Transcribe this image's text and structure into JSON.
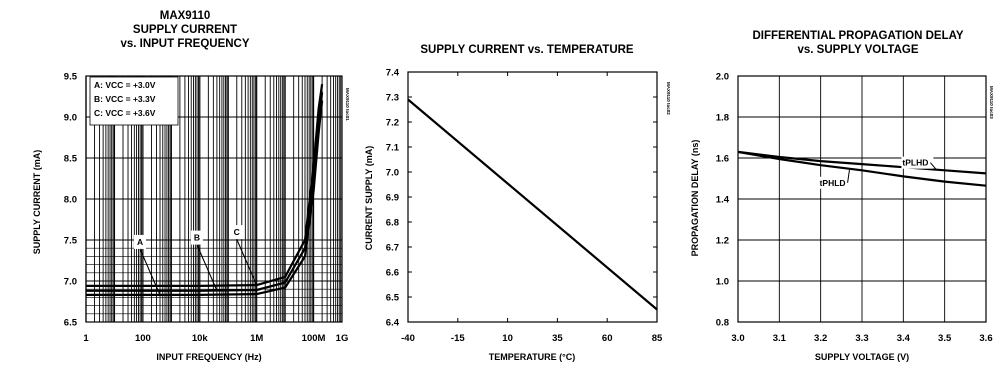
{
  "chart_data": [
    {
      "type": "line",
      "title_lines": [
        "MAX9110",
        "SUPPLY CURRENT",
        "vs. INPUT FREQUENCY"
      ],
      "xlabel": "INPUT FREQUENCY (Hz)",
      "ylabel": "SUPPLY CURRENT (mA)",
      "x_scale": "log",
      "xlim": [
        1,
        1000000000
      ],
      "ylim": [
        6.5,
        9.5
      ],
      "x_tick_values": [
        1,
        100,
        10000,
        1000000,
        100000000,
        1000000000
      ],
      "x_tick_labels": [
        "1",
        "100",
        "10k",
        "1M",
        "100M",
        "1G"
      ],
      "y_tick_values": [
        6.5,
        7.0,
        7.5,
        8.0,
        8.5,
        9.0,
        9.5
      ],
      "y_tick_labels": [
        "6.5",
        "7.0",
        "7.5",
        "8.0",
        "8.5",
        "9.0",
        "9.5"
      ],
      "grid": true,
      "code": "MAX9110 toc01",
      "legend_lines": [
        "A: VCC = +3.0V",
        "B: VCC = +3.3V",
        "C: VCC = +3.6V"
      ],
      "series": [
        {
          "name": "A",
          "x": [
            1,
            100,
            10000,
            1000000,
            10000000,
            50000000,
            100000000,
            150000000,
            200000000
          ],
          "y": [
            6.83,
            6.83,
            6.83,
            6.84,
            6.92,
            7.3,
            8.1,
            8.8,
            9.2
          ]
        },
        {
          "name": "B",
          "x": [
            1,
            100,
            10000,
            1000000,
            10000000,
            50000000,
            100000000,
            150000000,
            200000000
          ],
          "y": [
            6.88,
            6.88,
            6.88,
            6.89,
            6.98,
            7.4,
            8.25,
            8.95,
            9.3
          ]
        },
        {
          "name": "C",
          "x": [
            1,
            100,
            10000,
            1000000,
            10000000,
            50000000,
            100000000,
            150000000,
            200000000
          ],
          "y": [
            6.94,
            6.94,
            6.94,
            6.95,
            7.05,
            7.5,
            8.4,
            9.1,
            9.4
          ]
        }
      ],
      "curve_labels": [
        {
          "text": "A",
          "series": "A",
          "x": 400
        },
        {
          "text": "B",
          "series": "B",
          "x": 40000
        },
        {
          "text": "C",
          "series": "C",
          "x": 1000000
        }
      ]
    },
    {
      "type": "line",
      "title_lines": [
        "SUPPLY CURRENT vs. TEMPERATURE"
      ],
      "xlabel": "TEMPERATURE (°C)",
      "ylabel": "CURRENT SUPPLY (mA)",
      "xlim": [
        -40,
        85
      ],
      "ylim": [
        6.4,
        7.4
      ],
      "x_tick_values": [
        -40,
        -15,
        10,
        35,
        60,
        85
      ],
      "x_tick_labels": [
        "-40",
        "-15",
        "10",
        "35",
        "60",
        "85"
      ],
      "y_tick_values": [
        6.4,
        6.5,
        6.6,
        6.7,
        6.8,
        6.9,
        7.0,
        7.1,
        7.2,
        7.3,
        7.4
      ],
      "y_tick_labels": [
        "6.4",
        "6.5",
        "6.6",
        "6.7",
        "6.8",
        "6.9",
        "7.0",
        "7.1",
        "7.2",
        "7.3",
        "7.4"
      ],
      "grid": false,
      "code": "MAX9110 toc02",
      "series": [
        {
          "x": [
            -40,
            85
          ],
          "y": [
            7.29,
            6.45
          ]
        }
      ]
    },
    {
      "type": "line",
      "title_lines": [
        "DIFFERENTIAL PROPAGATION DELAY",
        "vs. SUPPLY VOLTAGE"
      ],
      "xlabel": "SUPPLY VOLTAGE (V)",
      "ylabel": "PROPAGATION DELAY (ns)",
      "xlim": [
        3.0,
        3.6
      ],
      "ylim": [
        0.8,
        2.0
      ],
      "x_tick_values": [
        3.0,
        3.1,
        3.2,
        3.3,
        3.4,
        3.5,
        3.6
      ],
      "x_tick_labels": [
        "3.0",
        "3.1",
        "3.2",
        "3.3",
        "3.4",
        "3.5",
        "3.6"
      ],
      "y_tick_values": [
        0.8,
        1.0,
        1.2,
        1.4,
        1.6,
        1.8,
        2.0
      ],
      "y_tick_labels": [
        "0.8",
        "1.0",
        "1.2",
        "1.4",
        "1.6",
        "1.8",
        "2.0"
      ],
      "grid": true,
      "code": "MAX9110 toc03",
      "series": [
        {
          "name": "tPLHD",
          "x": [
            3.0,
            3.1,
            3.2,
            3.3,
            3.4,
            3.5,
            3.6
          ],
          "y": [
            1.63,
            1.605,
            1.585,
            1.57,
            1.555,
            1.54,
            1.525
          ]
        },
        {
          "name": "tPHLD",
          "x": [
            3.0,
            3.1,
            3.2,
            3.3,
            3.4,
            3.5,
            3.6
          ],
          "y": [
            1.63,
            1.595,
            1.565,
            1.54,
            1.51,
            1.485,
            1.465
          ]
        }
      ],
      "curve_labels": [
        {
          "text": "tPLHD",
          "series": "tPLHD",
          "x": 3.48
        },
        {
          "text": "tPHLD",
          "series": "tPHLD",
          "x": 3.27
        }
      ]
    }
  ]
}
